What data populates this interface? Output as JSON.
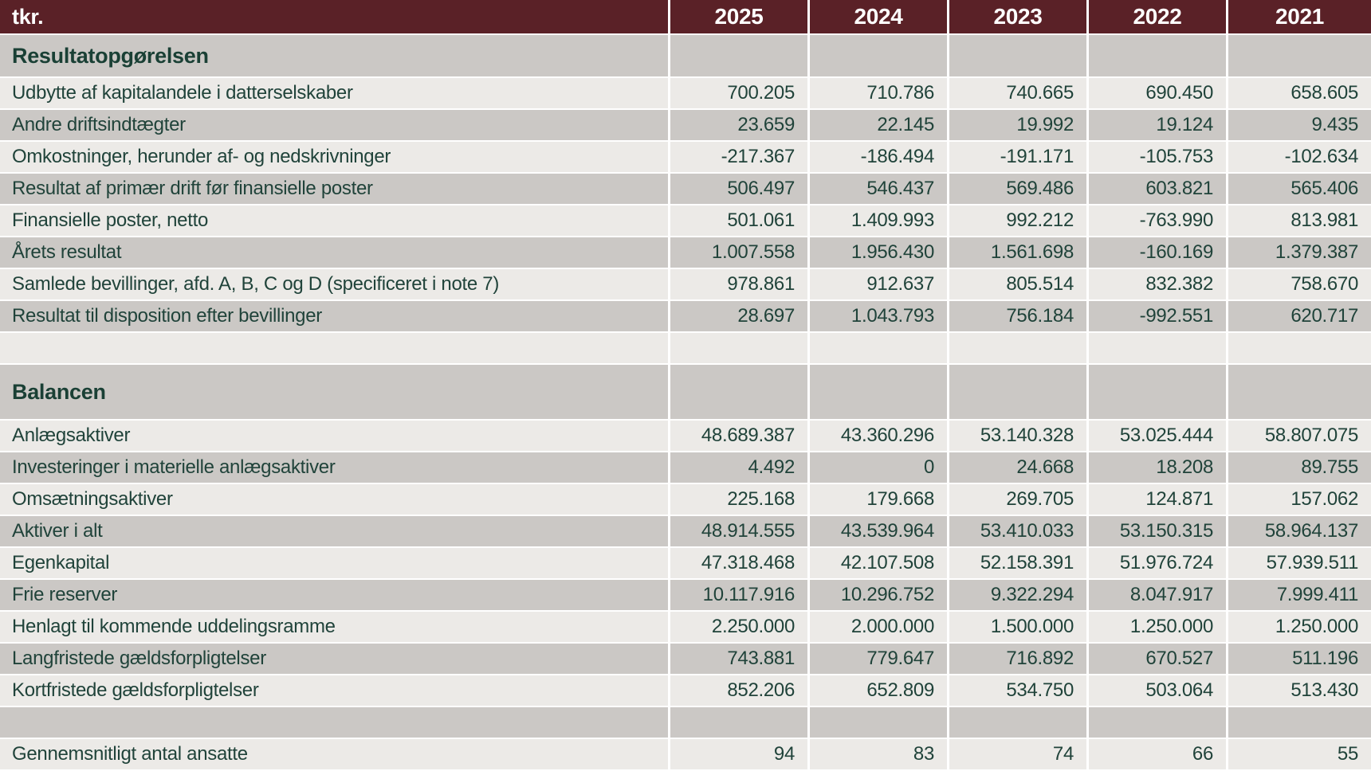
{
  "table": {
    "unit_label": "tkr.",
    "years": [
      "2025",
      "2024",
      "2023",
      "2022",
      "2021"
    ],
    "colors": {
      "header_background": "#5a2127",
      "header_text": "#ffffff",
      "row_light": "#eceae7",
      "row_dark": "#cbc8c5",
      "text_green": "#20433a"
    },
    "sections": [
      {
        "title": "Resultatopgørelsen",
        "rows": [
          {
            "label": "Udbytte af kapitalandele i datterselskaber",
            "values": [
              "700.205",
              "710.786",
              "740.665",
              "690.450",
              "658.605"
            ]
          },
          {
            "label": "Andre driftsindtægter",
            "values": [
              "23.659",
              "22.145",
              "19.992",
              "19.124",
              "9.435"
            ]
          },
          {
            "label": "Omkostninger, herunder af- og nedskrivninger",
            "values": [
              "-217.367",
              "-186.494",
              "-191.171",
              "-105.753",
              "-102.634"
            ]
          },
          {
            "label": "Resultat af primær drift før finansielle poster",
            "values": [
              "506.497",
              "546.437",
              "569.486",
              "603.821",
              "565.406"
            ]
          },
          {
            "label": "Finansielle poster, netto",
            "values": [
              "501.061",
              "1.409.993",
              "992.212",
              "-763.990",
              "813.981"
            ]
          },
          {
            "label": "Årets resultat",
            "values": [
              "1.007.558",
              "1.956.430",
              "1.561.698",
              "-160.169",
              "1.379.387"
            ]
          },
          {
            "label": "Samlede bevillinger, afd. A, B, C og D (specificeret i note 7)",
            "values": [
              "978.861",
              "912.637",
              "805.514",
              "832.382",
              "758.670"
            ]
          },
          {
            "label": "Resultat til disposition efter bevillinger",
            "values": [
              "28.697",
              "1.043.793",
              "756.184",
              "-992.551",
              "620.717"
            ]
          }
        ]
      },
      {
        "title": "Balancen",
        "rows": [
          {
            "label": "Anlægsaktiver",
            "values": [
              "48.689.387",
              "43.360.296",
              "53.140.328",
              "53.025.444",
              "58.807.075"
            ]
          },
          {
            "label": "Investeringer i materielle anlægsaktiver",
            "values": [
              "4.492",
              "0",
              "24.668",
              "18.208",
              "89.755"
            ]
          },
          {
            "label": "Omsætningsaktiver",
            "values": [
              "225.168",
              "179.668",
              "269.705",
              "124.871",
              "157.062"
            ]
          },
          {
            "label": "Aktiver i alt",
            "values": [
              "48.914.555",
              "43.539.964",
              "53.410.033",
              "53.150.315",
              "58.964.137"
            ]
          },
          {
            "label": "Egenkapital",
            "values": [
              "47.318.468",
              "42.107.508",
              "52.158.391",
              "51.976.724",
              "57.939.511"
            ]
          },
          {
            "label": "Frie reserver",
            "values": [
              "10.117.916",
              "10.296.752",
              "9.322.294",
              "8.047.917",
              "7.999.411"
            ]
          },
          {
            "label": "Henlagt til kommende uddelingsramme",
            "values": [
              "2.250.000",
              "2.000.000",
              "1.500.000",
              "1.250.000",
              "1.250.000"
            ]
          },
          {
            "label": "Langfristede gældsforpligtelser",
            "values": [
              "743.881",
              "779.647",
              "716.892",
              "670.527",
              "511.196"
            ]
          },
          {
            "label": "Kortfristede gældsforpligtelser",
            "values": [
              "852.206",
              "652.809",
              "534.750",
              "503.064",
              "513.430"
            ]
          }
        ]
      }
    ],
    "employees_row": {
      "label": "Gennemsnitligt antal ansatte",
      "values": [
        "94",
        "83",
        "74",
        "66",
        "55"
      ]
    }
  }
}
